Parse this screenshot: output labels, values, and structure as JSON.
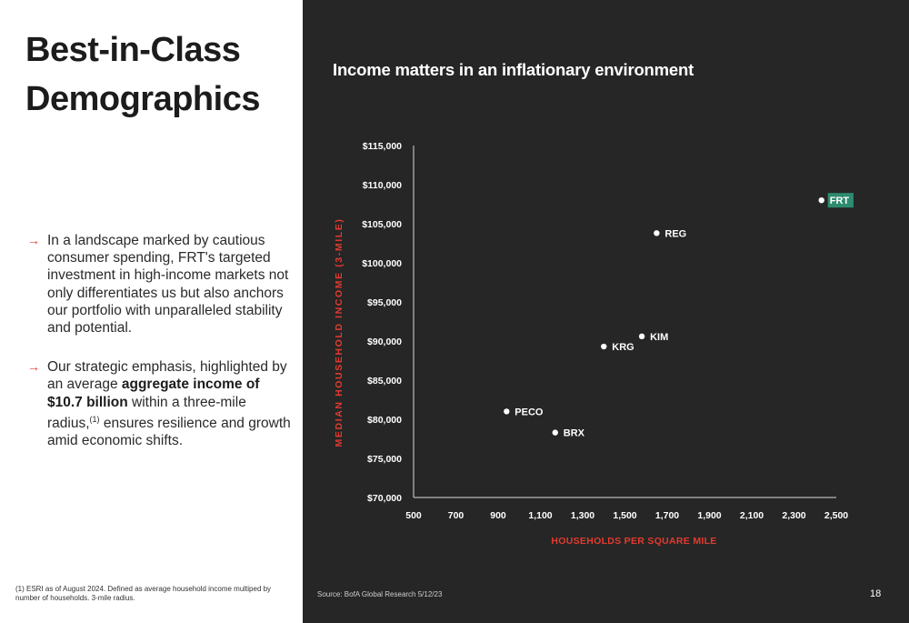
{
  "slide": {
    "title_lines": [
      "Best-in-Class",
      "Demographics"
    ],
    "bullets": [
      {
        "text": "In a landscape marked by cautious consumer spending, FRT's targeted investment in high-income markets not only differentiates us but also anchors our portfolio with unparalleled stability and potential."
      },
      {
        "before": "Our strategic emphasis, highlighted by an average ",
        "bold": "aggregate income of $10.7 billion",
        "middle": " within a three-mile radius,",
        "sup": "(1)",
        "after": " ensures resilience and growth amid economic shifts."
      }
    ],
    "footnote": "(1) ESRI as of August 2024. Defined as average household income multiped by number of households. 3-mile radius.",
    "source": "Source: BofA Global Research 5/12/23",
    "page_number": "18",
    "colors": {
      "accent_red": "#e23b2e",
      "highlight_green": "#2e8b6f",
      "panel_dark": "#262626"
    },
    "icons": {
      "bullet": "arrow-right-icon"
    }
  },
  "chart_data": {
    "type": "scatter",
    "title": "Income matters in an inflationary environment",
    "xlabel": "HOUSEHOLDS PER SQUARE MILE",
    "ylabel": "MEDIAN HOUSEHOLD INCOME (3-MILE)",
    "xlim": [
      500,
      2500
    ],
    "ylim": [
      70000,
      115000
    ],
    "x_ticks": [
      "500",
      "700",
      "900",
      "1,100",
      "1,300",
      "1,500",
      "1,700",
      "1,900",
      "2,100",
      "2,300",
      "2,500"
    ],
    "x_tick_values": [
      500,
      700,
      900,
      1100,
      1300,
      1500,
      1700,
      1900,
      2100,
      2300,
      2500
    ],
    "y_ticks": [
      "$70,000",
      "$75,000",
      "$80,000",
      "$85,000",
      "$90,000",
      "$95,000",
      "$100,000",
      "$105,000",
      "$110,000",
      "$115,000"
    ],
    "y_tick_values": [
      70000,
      75000,
      80000,
      85000,
      90000,
      95000,
      100000,
      105000,
      110000,
      115000
    ],
    "grid": false,
    "points": [
      {
        "label": "FRT",
        "x": 2430,
        "y": 108000,
        "highlight": true
      },
      {
        "label": "REG",
        "x": 1650,
        "y": 103800
      },
      {
        "label": "KIM",
        "x": 1580,
        "y": 90600
      },
      {
        "label": "KRG",
        "x": 1400,
        "y": 89300
      },
      {
        "label": "PECO",
        "x": 940,
        "y": 81000
      },
      {
        "label": "BRX",
        "x": 1170,
        "y": 78300
      }
    ]
  }
}
